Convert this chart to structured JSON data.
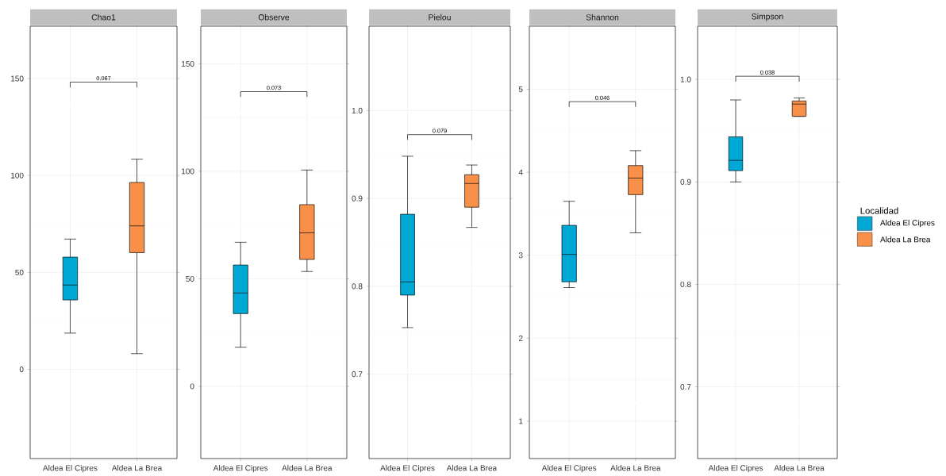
{
  "chart_data": [
    {
      "type": "box",
      "title": "Chao1",
      "categories": [
        "Aldea El Cipres",
        "Aldea La Brea"
      ],
      "series": [
        {
          "color": "#00a8d6",
          "boxes": [
            {
              "low": 18.7,
              "q1": 35.8,
              "median": 43.5,
              "q3": 57.9,
              "high": 67.2,
              "outliers": [
                137
              ]
            },
            null
          ]
        },
        {
          "color": "#f8904a",
          "boxes": [
            null,
            {
              "low": 8.1,
              "q1": 60.2,
              "median": 74,
              "q3": 96.4,
              "high": 108.4
            }
          ]
        }
      ],
      "ylim": [
        -46,
        177
      ],
      "yticks": [
        0,
        50,
        100,
        150
      ],
      "grid": true,
      "annotations": [
        "0.067"
      ]
    },
    {
      "type": "box",
      "title": "Observe",
      "categories": [
        "Aldea El Cipres",
        "Aldea La Brea"
      ],
      "series": [
        {
          "color": "#00a8d6",
          "boxes": [
            {
              "low": 18.2,
              "q1": 33.8,
              "median": 43.4,
              "q3": 56.4,
              "high": 67,
              "outliers": [
                127
              ]
            },
            null
          ]
        },
        {
          "color": "#f8904a",
          "boxes": [
            null,
            {
              "low": 53.4,
              "q1": 59,
              "median": 71.4,
              "q3": 84.5,
              "high": 100.6,
              "outliers": [
                6
              ]
            }
          ]
        }
      ],
      "ylim": [
        -33.6,
        167.5
      ],
      "yticks": [
        0,
        50,
        100,
        150
      ],
      "grid": true,
      "annotations": [
        "0.073"
      ]
    },
    {
      "type": "box",
      "title": "Pielou",
      "categories": [
        "Aldea El Cipres",
        "Aldea La Brea"
      ],
      "series": [
        {
          "color": "#00a8d6",
          "boxes": [
            {
              "low": 0.753,
              "q1": 0.79,
              "median": 0.805,
              "q3": 0.882,
              "high": 0.948
            },
            null
          ]
        },
        {
          "color": "#f8904a",
          "boxes": [
            null,
            {
              "low": 0.867,
              "q1": 0.89,
              "median": 0.917,
              "q3": 0.927,
              "high": 0.938,
              "outliers": [
                0.819,
                0.678
              ]
            }
          ]
        }
      ],
      "ylim": [
        0.604,
        1.096
      ],
      "yticks": [
        {
          "value": 0.7,
          "label": "0.7"
        },
        {
          "value": 0.8,
          "label": "0.8"
        },
        {
          "value": 0.9,
          "label": "0.9"
        },
        {
          "value": 1.0,
          "label": "1.0"
        }
      ],
      "grid": true,
      "annotations": [
        "0.079"
      ]
    },
    {
      "type": "box",
      "title": "Shannon",
      "categories": [
        "Aldea El Cipres",
        "Aldea La Brea"
      ],
      "series": [
        {
          "color": "#00a8d6",
          "boxes": [
            {
              "low": 2.61,
              "q1": 2.68,
              "median": 3.01,
              "q3": 3.36,
              "high": 3.65,
              "outliers": [
                4.59
              ]
            },
            null
          ]
        },
        {
          "color": "#f8904a",
          "boxes": [
            null,
            {
              "low": 3.27,
              "q1": 3.73,
              "median": 3.93,
              "q3": 4.08,
              "high": 4.26,
              "outliers": [
                1.22
              ]
            }
          ]
        }
      ],
      "ylim": [
        0.55,
        5.76
      ],
      "yticks": [
        1,
        2,
        3,
        4,
        5
      ],
      "grid": true,
      "annotations": [
        "0.046"
      ]
    },
    {
      "type": "box",
      "title": "Simpson",
      "categories": [
        "Aldea El Cipres",
        "Aldea La Brea"
      ],
      "series": [
        {
          "name": "Aldea El Cipres",
          "color": "#00a8d6",
          "boxes": [
            {
              "low": 0.9,
              "q1": 0.911,
              "median": 0.921,
              "q3": 0.944,
              "high": 0.98
            },
            null
          ]
        },
        {
          "name": "Aldea La Brea",
          "color": "#f8904a",
          "boxes": [
            null,
            {
              "low": 0.964,
              "q1": 0.964,
              "median": 0.976,
              "q3": 0.979,
              "high": 0.982,
              "outliers": [
                0.941,
                0.668
              ]
            }
          ]
        }
      ],
      "ylim": [
        0.63,
        1.052
      ],
      "yticks": [
        {
          "value": 0.7,
          "label": "0.7"
        },
        {
          "value": 0.8,
          "label": "0.8"
        },
        {
          "value": 0.9,
          "label": "0.9"
        },
        {
          "value": 1.0,
          "label": "1.0"
        }
      ],
      "grid": true,
      "annotations": [
        "0.038"
      ],
      "legend": "right",
      "legend_title": "Localidad"
    }
  ]
}
